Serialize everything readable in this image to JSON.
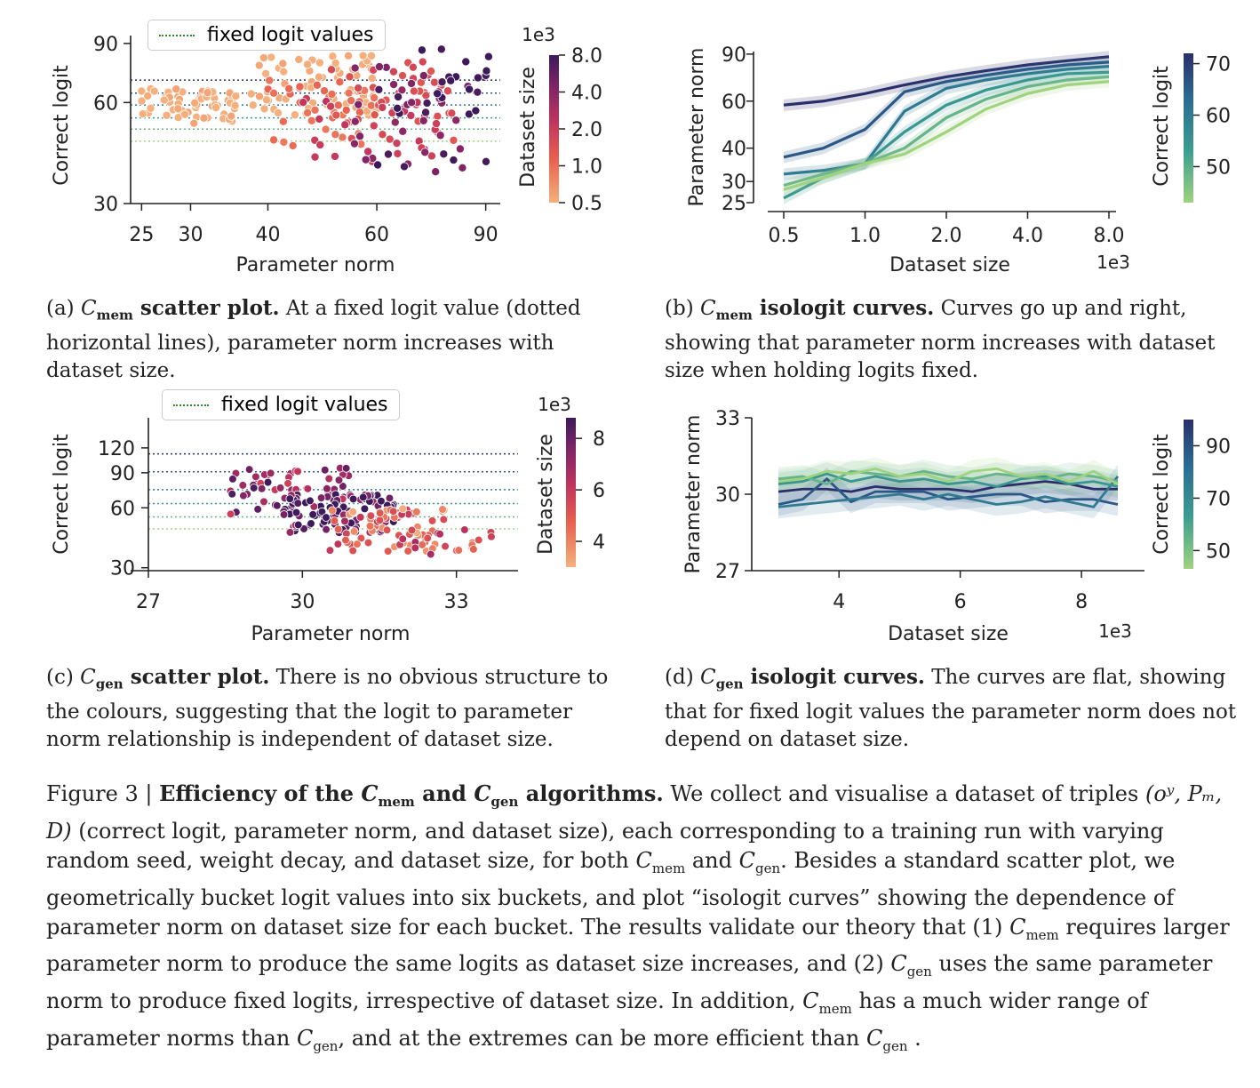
{
  "panels": {
    "a": {
      "ylabel": "Correct logit",
      "xlabel": "Parameter norm",
      "yticks": [
        "30",
        "60",
        "90"
      ],
      "xticks": [
        "25",
        "30",
        "40",
        "60",
        "90"
      ],
      "legend": "fixed logit values",
      "cbar_label": "Dataset size",
      "cbar_exp": "1e3",
      "cbar_ticks": [
        "8.0",
        "4.0",
        "2.0",
        "1.0",
        "0.5"
      ],
      "caption_label": "(a)",
      "caption_sym": "C",
      "caption_sub": "mem",
      "caption_bold": "scatter plot.",
      "caption_text": "At a fixed logit value (dotted horizontal lines), parameter norm increases with dataset size."
    },
    "b": {
      "ylabel": "Parameter norm",
      "xlabel": "Dataset size",
      "xexp": "1e3",
      "yticks": [
        "25",
        "30",
        "40",
        "60",
        "90"
      ],
      "xticks": [
        "0.5",
        "1.0",
        "2.0",
        "4.0",
        "8.0"
      ],
      "cbar_label": "Correct logit",
      "cbar_ticks": [
        "70",
        "60",
        "50"
      ],
      "caption_label": "(b)",
      "caption_sym": "C",
      "caption_sub": "mem",
      "caption_bold": "isologit curves.",
      "caption_text": "Curves go up and right, showing that parameter norm increases with dataset size when holding logits fixed."
    },
    "c": {
      "ylabel": "Correct logit",
      "xlabel": "Parameter norm",
      "yticks": [
        "30",
        "60",
        "90",
        "120"
      ],
      "xticks": [
        "27",
        "30",
        "33"
      ],
      "legend": "fixed logit values",
      "cbar_label": "Dataset size",
      "cbar_exp": "1e3",
      "cbar_ticks": [
        "8",
        "6",
        "4"
      ],
      "caption_label": "(c)",
      "caption_sym": "C",
      "caption_sub": "gen",
      "caption_bold": "scatter plot.",
      "caption_text": "There is no obvious structure to the colours, suggesting that the logit to parameter norm relationship is independent of dataset size."
    },
    "d": {
      "ylabel": "Parameter norm",
      "xlabel": "Dataset size",
      "xexp": "1e3",
      "yticks": [
        "27",
        "30",
        "33"
      ],
      "xticks": [
        "4",
        "6",
        "8"
      ],
      "cbar_label": "Correct logit",
      "cbar_ticks": [
        "90",
        "70",
        "50"
      ],
      "caption_label": "(d)",
      "caption_sym": "C",
      "caption_sub": "gen",
      "caption_bold": "isologit curves.",
      "caption_text": "The curves are flat, showing that for fixed logit values the parameter norm does not depend on dataset size."
    }
  },
  "figure_caption": {
    "label": "Figure 3 |",
    "bold": "Efficiency of the",
    "and": "and",
    "algorithms": "algorithms.",
    "line1": "We collect and visualise a dataset of triples",
    "triple": "(oʸ, Pₘ, D)",
    "line2": "(correct logit, parameter norm, and dataset size), each corresponding to a training run with varying random seed, weight decay, and dataset size, for both",
    "line3": ". Besides a standard scatter plot, we geometrically bucket logit values into six buckets, and plot “isologit curves” showing the dependence of parameter norm on dataset size for each bucket. The results validate our theory that (1)",
    "line4": "requires larger parameter norm to produce the same logits as dataset size increases, and (2)",
    "line5": "uses the same parameter norm to produce fixed logits, irrespective of dataset size. In addition,",
    "line6": "has a much wider range of parameter norms than",
    "line7": ", and at the extremes can be more efficient than",
    "sym": "C",
    "mem": "mem",
    "gen": "gen"
  },
  "chart_data": [
    {
      "id": "a",
      "type": "scatter",
      "title": "",
      "xlabel": "Parameter norm",
      "ylabel": "Correct logit",
      "xscale": "log",
      "yscale": "log",
      "xlim": [
        24,
        95
      ],
      "ylim": [
        30,
        95
      ],
      "fixed_logit_lines": [
        46,
        50,
        54,
        59,
        64,
        70
      ],
      "clusters": [
        {
          "dataset_size": 500,
          "x_range": [
            25,
            36
          ],
          "y_range": [
            52,
            66
          ],
          "n": 60
        },
        {
          "dataset_size": 500,
          "x_range": [
            37,
            60
          ],
          "y_range": [
            55,
            84
          ],
          "n": 70
        },
        {
          "dataset_size": 1000,
          "x_range": [
            40,
            60
          ],
          "y_range": [
            44,
            70
          ],
          "n": 40
        },
        {
          "dataset_size": 1500,
          "x_range": [
            50,
            80
          ],
          "y_range": [
            45,
            80
          ],
          "n": 40
        },
        {
          "dataset_size": 2000,
          "x_range": [
            45,
            75
          ],
          "y_range": [
            40,
            62
          ],
          "n": 30
        },
        {
          "dataset_size": 4000,
          "x_range": [
            55,
            85
          ],
          "y_range": [
            36,
            78
          ],
          "n": 30
        },
        {
          "dataset_size": 8000,
          "x_range": [
            60,
            92
          ],
          "y_range": [
            37,
            88
          ],
          "n": 30
        }
      ]
    },
    {
      "id": "b",
      "type": "line",
      "xlabel": "Dataset size",
      "ylabel": "Parameter norm",
      "x": [
        0.5,
        0.7,
        1.0,
        1.4,
        2.0,
        2.8,
        4.0,
        5.6,
        8.0
      ],
      "series": [
        {
          "name": "70",
          "values": [
            58,
            60,
            64,
            69,
            74,
            78,
            82,
            85,
            88
          ]
        },
        {
          "name": "66",
          "values": [
            37,
            40,
            47,
            65,
            71,
            75,
            79,
            82,
            84
          ]
        },
        {
          "name": "62",
          "values": [
            32,
            33,
            35,
            55,
            67,
            72,
            76,
            79,
            81
          ]
        },
        {
          "name": "58",
          "values": [
            26,
            31,
            35,
            46,
            58,
            66,
            72,
            76,
            77
          ]
        },
        {
          "name": "54",
          "values": [
            29,
            32,
            35,
            40,
            52,
            61,
            68,
            72,
            74
          ]
        },
        {
          "name": "50",
          "values": [
            28,
            31,
            35,
            38,
            46,
            56,
            64,
            69,
            71
          ]
        }
      ]
    },
    {
      "id": "c",
      "type": "scatter",
      "xlabel": "Parameter norm",
      "ylabel": "Correct logit",
      "xlim": [
        27,
        34.2
      ],
      "yscale": "log",
      "ylim": [
        29,
        170
      ],
      "fixed_logit_lines": [
        47,
        54,
        63,
        74,
        91,
        112
      ],
      "clusters": [
        {
          "dataset_size": 7000,
          "x_range": [
            28.6,
            30.9
          ],
          "y_range": [
            55,
            95
          ],
          "n": 60
        },
        {
          "dataset_size": 8000,
          "x_range": [
            29.6,
            31.8
          ],
          "y_range": [
            45,
            70
          ],
          "n": 90
        },
        {
          "dataset_size": 4500,
          "x_range": [
            30.5,
            32.8
          ],
          "y_range": [
            35,
            60
          ],
          "n": 70
        },
        {
          "dataset_size": 5500,
          "x_range": [
            31.8,
            34.0
          ],
          "y_range": [
            35,
            47
          ],
          "n": 20
        }
      ]
    },
    {
      "id": "d",
      "type": "line",
      "xlabel": "Dataset size",
      "ylabel": "Parameter norm",
      "x": [
        3.0,
        3.4,
        3.8,
        4.2,
        4.6,
        5.0,
        5.4,
        5.8,
        6.2,
        6.6,
        7.0,
        7.4,
        7.8,
        8.2,
        8.6
      ],
      "series": [
        {
          "name": "95",
          "values": [
            30.1,
            30.2,
            30.2,
            30.1,
            30.3,
            30.2,
            30.2,
            30.2,
            30.1,
            30.3,
            30.4,
            30.5,
            30.4,
            30.2,
            30.2
          ]
        },
        {
          "name": "80",
          "values": [
            29.6,
            29.8,
            30.6,
            29.7,
            30.1,
            30.1,
            30.1,
            29.8,
            29.9,
            30.0,
            30.0,
            29.7,
            29.8,
            29.8,
            29.6
          ]
        },
        {
          "name": "70",
          "values": [
            29.5,
            29.6,
            29.7,
            29.8,
            29.9,
            30.0,
            29.8,
            30.0,
            29.8,
            29.6,
            29.7,
            29.9,
            29.7,
            29.5,
            30.7
          ]
        },
        {
          "name": "62",
          "values": [
            30.4,
            30.5,
            30.8,
            30.5,
            30.7,
            30.5,
            30.6,
            30.4,
            30.5,
            30.3,
            30.6,
            30.7,
            30.4,
            30.5,
            30.3
          ]
        },
        {
          "name": "55",
          "values": [
            30.6,
            30.7,
            30.4,
            30.9,
            30.8,
            30.7,
            30.9,
            30.7,
            30.6,
            30.8,
            30.7,
            30.6,
            30.8,
            30.7,
            30.5
          ]
        },
        {
          "name": "48",
          "values": [
            30.5,
            30.6,
            30.9,
            30.8,
            31.0,
            30.7,
            30.8,
            30.5,
            30.9,
            31.0,
            30.7,
            30.8,
            30.5,
            30.9,
            30.4
          ]
        }
      ]
    }
  ]
}
